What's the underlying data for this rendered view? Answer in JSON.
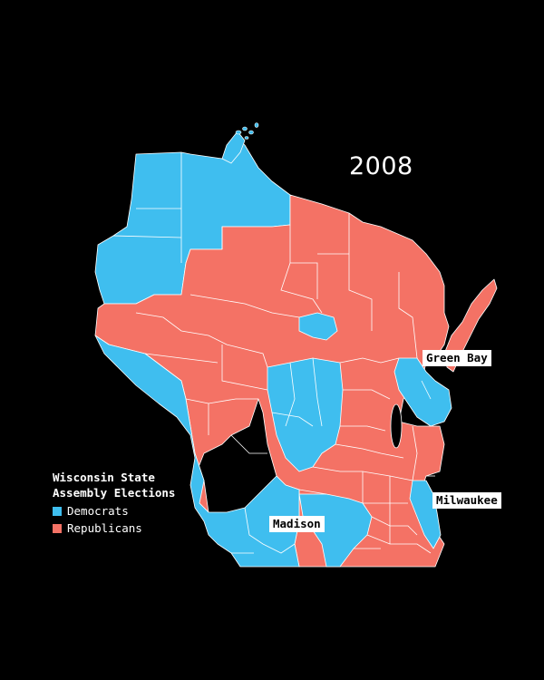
{
  "map": {
    "year": "2008",
    "legend": {
      "title": "Wisconsin State Assembly Elections",
      "items": [
        {
          "label": "Democrats",
          "color": "#3fbeef"
        },
        {
          "label": "Republicans",
          "color": "#f47265"
        }
      ]
    },
    "cities": {
      "green_bay": "Green Bay",
      "milwaukee": "Milwaukee",
      "madison": "Madison"
    },
    "colors": {
      "background": "#000000",
      "democrat": "#3fbeef",
      "republican": "#f47265",
      "border": "#ffffff"
    }
  }
}
